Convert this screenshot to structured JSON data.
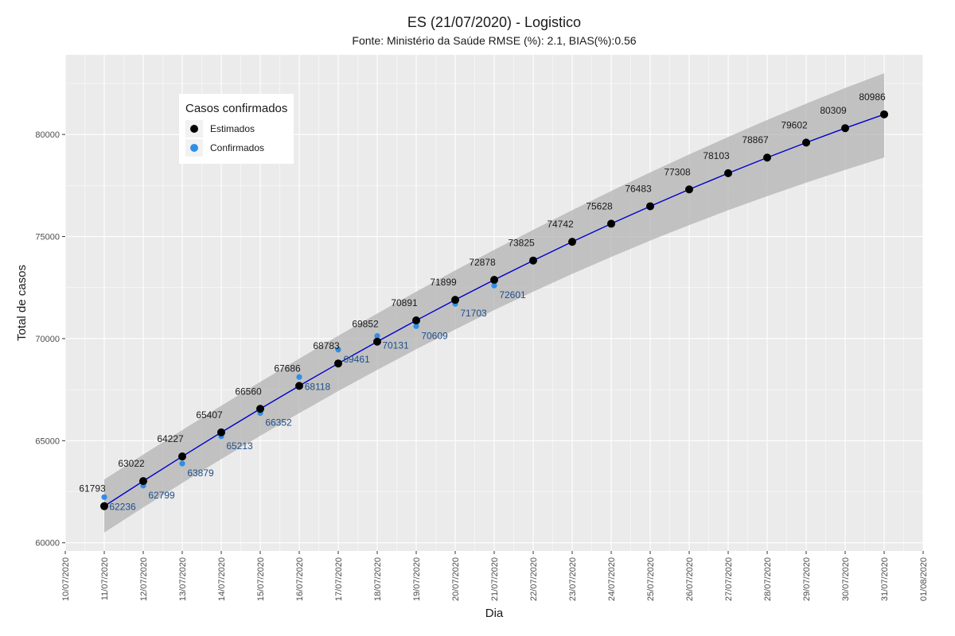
{
  "chart_data": {
    "type": "line",
    "title": "ES (21/07/2020) - Logistico",
    "subtitle": "Fonte: Ministério da Saúde RMSE (%): 2.1, BIAS(%):0.56",
    "xlabel": "Dia",
    "ylabel": "Total de casos",
    "xlim": [
      "2020-07-10",
      "2020-08-01"
    ],
    "ylim": [
      59600,
      83900
    ],
    "grid": true,
    "legend": {
      "title": "Casos confirmados",
      "position": "top-left",
      "entries": [
        {
          "label": "Estimados",
          "color": "#000000"
        },
        {
          "label": "Confirmados",
          "color": "#2e8fe8"
        }
      ]
    },
    "x_tick_labels": [
      "10/07/2020",
      "11/07/2020",
      "12/07/2020",
      "13/07/2020",
      "14/07/2020",
      "15/07/2020",
      "16/07/2020",
      "17/07/2020",
      "18/07/2020",
      "19/07/2020",
      "20/07/2020",
      "21/07/2020",
      "22/07/2020",
      "23/07/2020",
      "24/07/2020",
      "25/07/2020",
      "26/07/2020",
      "27/07/2020",
      "28/07/2020",
      "29/07/2020",
      "30/07/2020",
      "31/07/2020",
      "01/08/2020"
    ],
    "y_tick_labels": [
      "60000",
      "65000",
      "70000",
      "75000",
      "80000"
    ],
    "y_tick_values": [
      60000,
      65000,
      70000,
      75000,
      80000
    ],
    "series": [
      {
        "name": "Estimados",
        "color": "#000000",
        "x": [
          "11/07/2020",
          "12/07/2020",
          "13/07/2020",
          "14/07/2020",
          "15/07/2020",
          "16/07/2020",
          "17/07/2020",
          "18/07/2020",
          "19/07/2020",
          "20/07/2020",
          "21/07/2020",
          "22/07/2020",
          "23/07/2020",
          "24/07/2020",
          "25/07/2020",
          "26/07/2020",
          "27/07/2020",
          "28/07/2020",
          "29/07/2020",
          "30/07/2020",
          "31/07/2020"
        ],
        "values": [
          61793,
          63022,
          64227,
          65407,
          66560,
          67686,
          68783,
          69852,
          70891,
          71899,
          72878,
          73825,
          74742,
          75628,
          76483,
          77308,
          78103,
          78867,
          79602,
          80309,
          80986
        ],
        "labels": [
          "61793",
          "63022",
          "64227",
          "65407",
          "66560",
          "67686",
          "68783",
          "69852",
          "70891",
          "71899",
          "72878",
          "73825",
          "74742",
          "75628",
          "76483",
          "77308",
          "78103",
          "78867",
          "79602",
          "80309",
          "80986"
        ]
      },
      {
        "name": "Confirmados",
        "color": "#2e8fe8",
        "x": [
          "11/07/2020",
          "12/07/2020",
          "13/07/2020",
          "14/07/2020",
          "15/07/2020",
          "16/07/2020",
          "17/07/2020",
          "18/07/2020",
          "19/07/2020",
          "20/07/2020",
          "21/07/2020"
        ],
        "values": [
          62236,
          62799,
          63879,
          65213,
          66352,
          68118,
          69461,
          70131,
          70609,
          71703,
          72601
        ],
        "labels": [
          "62236",
          "62799",
          "63879",
          "65213",
          "66352",
          "68118",
          "69461",
          "70131",
          "70609",
          "71703",
          "72601"
        ]
      }
    ],
    "band": {
      "lower": [
        60500,
        61730,
        62930,
        64100,
        65240,
        66350,
        67430,
        68470,
        69480,
        70450,
        71400,
        72300,
        73170,
        74000,
        74800,
        75560,
        76290,
        76980,
        77640,
        78270,
        78870
      ],
      "upper": [
        63100,
        64320,
        65520,
        66710,
        67880,
        69020,
        70140,
        71230,
        72300,
        73340,
        74350,
        75330,
        76290,
        77230,
        78140,
        79020,
        79880,
        80710,
        81510,
        82280,
        83000
      ]
    },
    "colors": {
      "fit_line": "#0000cc",
      "band": "#b3b3b3",
      "panel": "#ebebeb",
      "grid": "#ffffff",
      "confirmed_label": "#1f4e8c"
    }
  }
}
